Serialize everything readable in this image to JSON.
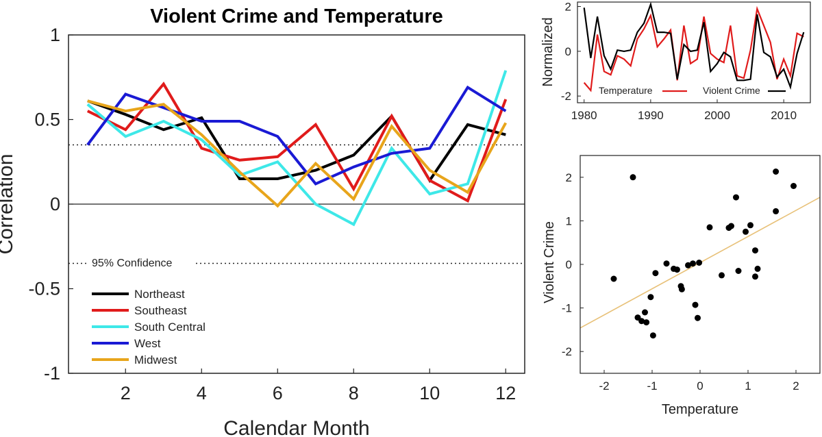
{
  "chart_data": [
    {
      "type": "line",
      "title": "Violent Crime and Temperature",
      "xlabel": "Calendar Month",
      "ylabel": "Correlation",
      "xlim": [
        0.5,
        12.5
      ],
      "ylim": [
        -1,
        1
      ],
      "xticks": [
        "2",
        "4",
        "6",
        "8",
        "10",
        "12"
      ],
      "yticks": [
        "1",
        "0.5",
        "0",
        "-0.5",
        "-1"
      ],
      "x": [
        1,
        2,
        3,
        4,
        5,
        6,
        7,
        8,
        9,
        10,
        11,
        12
      ],
      "confidence_label": "95% Confidence",
      "confidence_level": 0.35,
      "series": [
        {
          "name": "Northeast",
          "color": "#000000",
          "values": [
            0.61,
            0.53,
            0.44,
            0.51,
            0.15,
            0.15,
            0.2,
            0.29,
            0.52,
            0.14,
            0.47,
            0.41
          ]
        },
        {
          "name": "Southeast",
          "color": "#e01b1b",
          "values": [
            0.55,
            0.44,
            0.71,
            0.33,
            0.26,
            0.28,
            0.47,
            0.09,
            0.52,
            0.14,
            0.02,
            0.62
          ]
        },
        {
          "name": "South Central",
          "color": "#3ee8e8",
          "values": [
            0.59,
            0.4,
            0.49,
            0.38,
            0.17,
            0.25,
            0.0,
            -0.12,
            0.33,
            0.06,
            0.12,
            0.79
          ]
        },
        {
          "name": "West",
          "color": "#1a1ad4",
          "values": [
            0.35,
            0.65,
            0.57,
            0.49,
            0.49,
            0.4,
            0.12,
            0.22,
            0.3,
            0.33,
            0.69,
            0.55
          ]
        },
        {
          "name": "Midwest",
          "color": "#e8a51b",
          "values": [
            0.61,
            0.55,
            0.59,
            0.41,
            0.19,
            -0.01,
            0.24,
            0.03,
            0.46,
            0.2,
            0.07,
            0.48
          ]
        }
      ]
    },
    {
      "type": "line",
      "title": "",
      "xlabel": "",
      "ylabel": "Normalized",
      "xlim": [
        1979,
        2014
      ],
      "ylim": [
        -2.3,
        2.2
      ],
      "xticks": [
        "1980",
        "1990",
        "2000",
        "2010"
      ],
      "yticks": [
        "2",
        "0",
        "-2"
      ],
      "x": [
        1980,
        1981,
        1982,
        1983,
        1984,
        1985,
        1986,
        1987,
        1988,
        1989,
        1990,
        1991,
        1992,
        1993,
        1994,
        1995,
        1996,
        1997,
        1998,
        1999,
        2000,
        2001,
        2002,
        2003,
        2004,
        2005,
        2006,
        2007,
        2008,
        2009,
        2010,
        2011,
        2012,
        2013
      ],
      "series": [
        {
          "name": "Temperature",
          "color": "#e01b1b",
          "values": [
            -1.4,
            -1.75,
            0.75,
            -0.9,
            -1.05,
            -0.2,
            -0.35,
            -0.65,
            0.55,
            1.0,
            1.6,
            0.2,
            0.55,
            0.95,
            -1.3,
            1.15,
            -0.55,
            -0.35,
            1.55,
            -0.1,
            -0.35,
            -0.5,
            1.15,
            -1.1,
            -1.2,
            0.05,
            1.9,
            1.15,
            0.4,
            -1.25,
            -0.35,
            -1.1,
            0.8,
            0.65
          ]
        },
        {
          "name": "Violent Crime",
          "color": "#000000",
          "values": [
            1.95,
            -0.3,
            1.55,
            -0.2,
            -0.8,
            0.05,
            0.0,
            0.05,
            0.85,
            1.25,
            2.1,
            0.85,
            0.85,
            0.8,
            -1.25,
            0.3,
            0.0,
            0.05,
            1.3,
            -0.9,
            -0.55,
            -0.05,
            -0.25,
            -1.3,
            -1.3,
            -1.25,
            1.65,
            -0.05,
            -0.25,
            -1.15,
            -0.8,
            -1.6,
            -0.1,
            0.85
          ]
        }
      ]
    },
    {
      "type": "scatter",
      "title": "",
      "xlabel": "Temperature",
      "ylabel": "Violent Crime",
      "xlim": [
        -2.5,
        2.5
      ],
      "ylim": [
        -2.5,
        2.5
      ],
      "xticks": [
        "-2",
        "-1",
        "0",
        "1",
        "2"
      ],
      "yticks": [
        "2",
        "1",
        "0",
        "-1",
        "-2"
      ],
      "points": [
        [
          -1.4,
          2.0
        ],
        [
          -1.8,
          -0.33
        ],
        [
          -1.3,
          -1.22
        ],
        [
          -1.22,
          -1.3
        ],
        [
          -1.15,
          -1.1
        ],
        [
          -1.12,
          -1.33
        ],
        [
          -1.03,
          -0.75
        ],
        [
          -0.98,
          -1.63
        ],
        [
          -0.93,
          -0.2
        ],
        [
          -0.7,
          0.02
        ],
        [
          -0.55,
          -0.1
        ],
        [
          -0.48,
          -0.12
        ],
        [
          -0.4,
          -0.5
        ],
        [
          -0.38,
          -0.57
        ],
        [
          -0.25,
          -0.02
        ],
        [
          -0.15,
          0.02
        ],
        [
          -0.1,
          -0.93
        ],
        [
          -0.05,
          -1.23
        ],
        [
          -0.02,
          0.04
        ],
        [
          0.45,
          -0.25
        ],
        [
          0.2,
          0.85
        ],
        [
          0.6,
          0.84
        ],
        [
          0.65,
          0.88
        ],
        [
          0.75,
          1.54
        ],
        [
          0.8,
          -0.15
        ],
        [
          0.95,
          0.75
        ],
        [
          1.05,
          0.9
        ],
        [
          1.15,
          -0.28
        ],
        [
          1.15,
          0.32
        ],
        [
          1.2,
          -0.1
        ],
        [
          1.58,
          1.22
        ],
        [
          1.58,
          2.13
        ],
        [
          1.95,
          1.8
        ]
      ],
      "fit_line": {
        "color": "#e8c178",
        "intercept": 0.04,
        "slope": 0.6
      }
    }
  ]
}
